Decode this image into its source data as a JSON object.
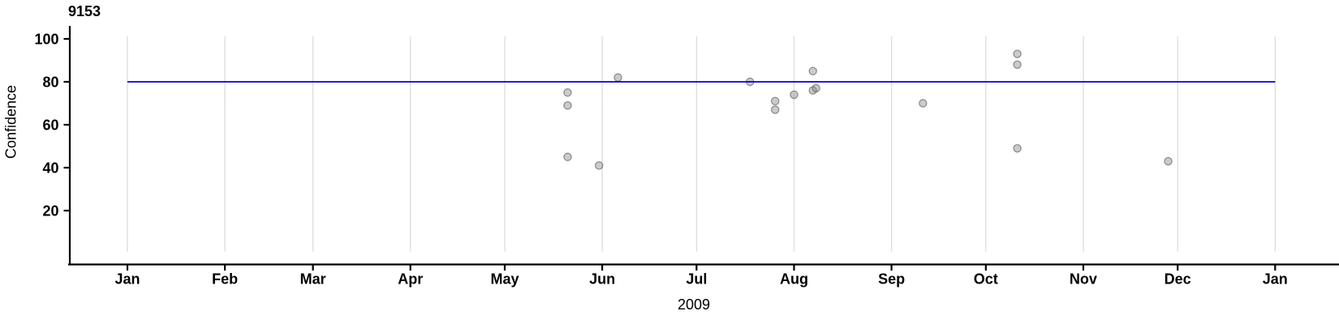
{
  "chart_data": {
    "type": "scatter",
    "title": "9153",
    "xlabel": "2009",
    "ylabel": "Confidence",
    "x_tick_labels": [
      "Jan",
      "Feb",
      "Mar",
      "Apr",
      "May",
      "Jun",
      "Jul",
      "Aug",
      "Sep",
      "Oct",
      "Nov",
      "Dec",
      "Jan"
    ],
    "x_range": [
      "2009-01-01",
      "2010-01-01"
    ],
    "y_ticks": [
      20,
      40,
      60,
      80,
      100
    ],
    "ylim": [
      0,
      102
    ],
    "grid": "vertical-month-gridlines",
    "legend": "none",
    "reference_line": {
      "value": 80,
      "color": "#0000cc"
    },
    "colors": {
      "point_fill": "#cbcbcb",
      "point_border": "#909090",
      "gridline": "#dcdcdc",
      "axis": "#000000",
      "text": "#000000",
      "reference_line": "#0000cc"
    },
    "points": [
      {
        "date": "2009-05-21",
        "value": 75
      },
      {
        "date": "2009-05-21",
        "value": 69
      },
      {
        "date": "2009-05-21",
        "value": 45
      },
      {
        "date": "2009-05-31",
        "value": 41
      },
      {
        "date": "2009-06-06",
        "value": 82
      },
      {
        "date": "2009-07-18",
        "value": 80
      },
      {
        "date": "2009-07-26",
        "value": 71
      },
      {
        "date": "2009-07-26",
        "value": 67
      },
      {
        "date": "2009-08-01",
        "value": 74
      },
      {
        "date": "2009-08-07",
        "value": 85
      },
      {
        "date": "2009-08-07",
        "value": 76
      },
      {
        "date": "2009-08-08",
        "value": 77
      },
      {
        "date": "2009-09-11",
        "value": 70
      },
      {
        "date": "2009-10-11",
        "value": 93
      },
      {
        "date": "2009-10-11",
        "value": 88
      },
      {
        "date": "2009-10-11",
        "value": 49
      },
      {
        "date": "2009-11-28",
        "value": 43
      }
    ]
  }
}
